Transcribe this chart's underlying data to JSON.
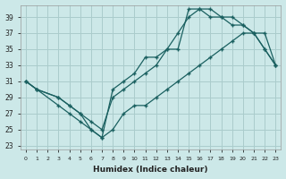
{
  "xlabel": "Humidex (Indice chaleur)",
  "background_color": "#cce8e8",
  "grid_color": "#aacccc",
  "line_color": "#1a6060",
  "xlim_min": -0.5,
  "xlim_max": 23.5,
  "ylim_min": 22.5,
  "ylim_max": 40.5,
  "yticks": [
    23,
    25,
    27,
    29,
    31,
    33,
    35,
    37,
    39
  ],
  "xticks": [
    0,
    1,
    2,
    3,
    4,
    5,
    6,
    7,
    8,
    9,
    10,
    11,
    12,
    13,
    14,
    15,
    16,
    17,
    18,
    19,
    20,
    21,
    22,
    23
  ],
  "line1_x": [
    0,
    1,
    3,
    4,
    5,
    6,
    7,
    8,
    9,
    10,
    11,
    12,
    13,
    14,
    15,
    16,
    17,
    18,
    19,
    20,
    21,
    22,
    23
  ],
  "line1_y": [
    31,
    30,
    29,
    28,
    27,
    25,
    24,
    30,
    31,
    32,
    34,
    34,
    35,
    35,
    40,
    40,
    40,
    39,
    39,
    38,
    37,
    35,
    33
  ],
  "line2_x": [
    0,
    1,
    3,
    4,
    5,
    6,
    7,
    8,
    9,
    10,
    11,
    12,
    13,
    14,
    15,
    16,
    17,
    18,
    19,
    20,
    21,
    22,
    23
  ],
  "line2_y": [
    31,
    30,
    29,
    28,
    27,
    26,
    25,
    29,
    30,
    31,
    32,
    33,
    35,
    37,
    39,
    40,
    39,
    39,
    38,
    38,
    37,
    35,
    33
  ],
  "line3_x": [
    0,
    1,
    3,
    4,
    5,
    6,
    7,
    8,
    9,
    10,
    11,
    12,
    13,
    14,
    15,
    16,
    17,
    18,
    19,
    20,
    21,
    22,
    23
  ],
  "line3_y": [
    31,
    30,
    28,
    27,
    26,
    25,
    24,
    25,
    27,
    28,
    28,
    29,
    30,
    31,
    32,
    33,
    34,
    35,
    36,
    37,
    37,
    37,
    33
  ]
}
